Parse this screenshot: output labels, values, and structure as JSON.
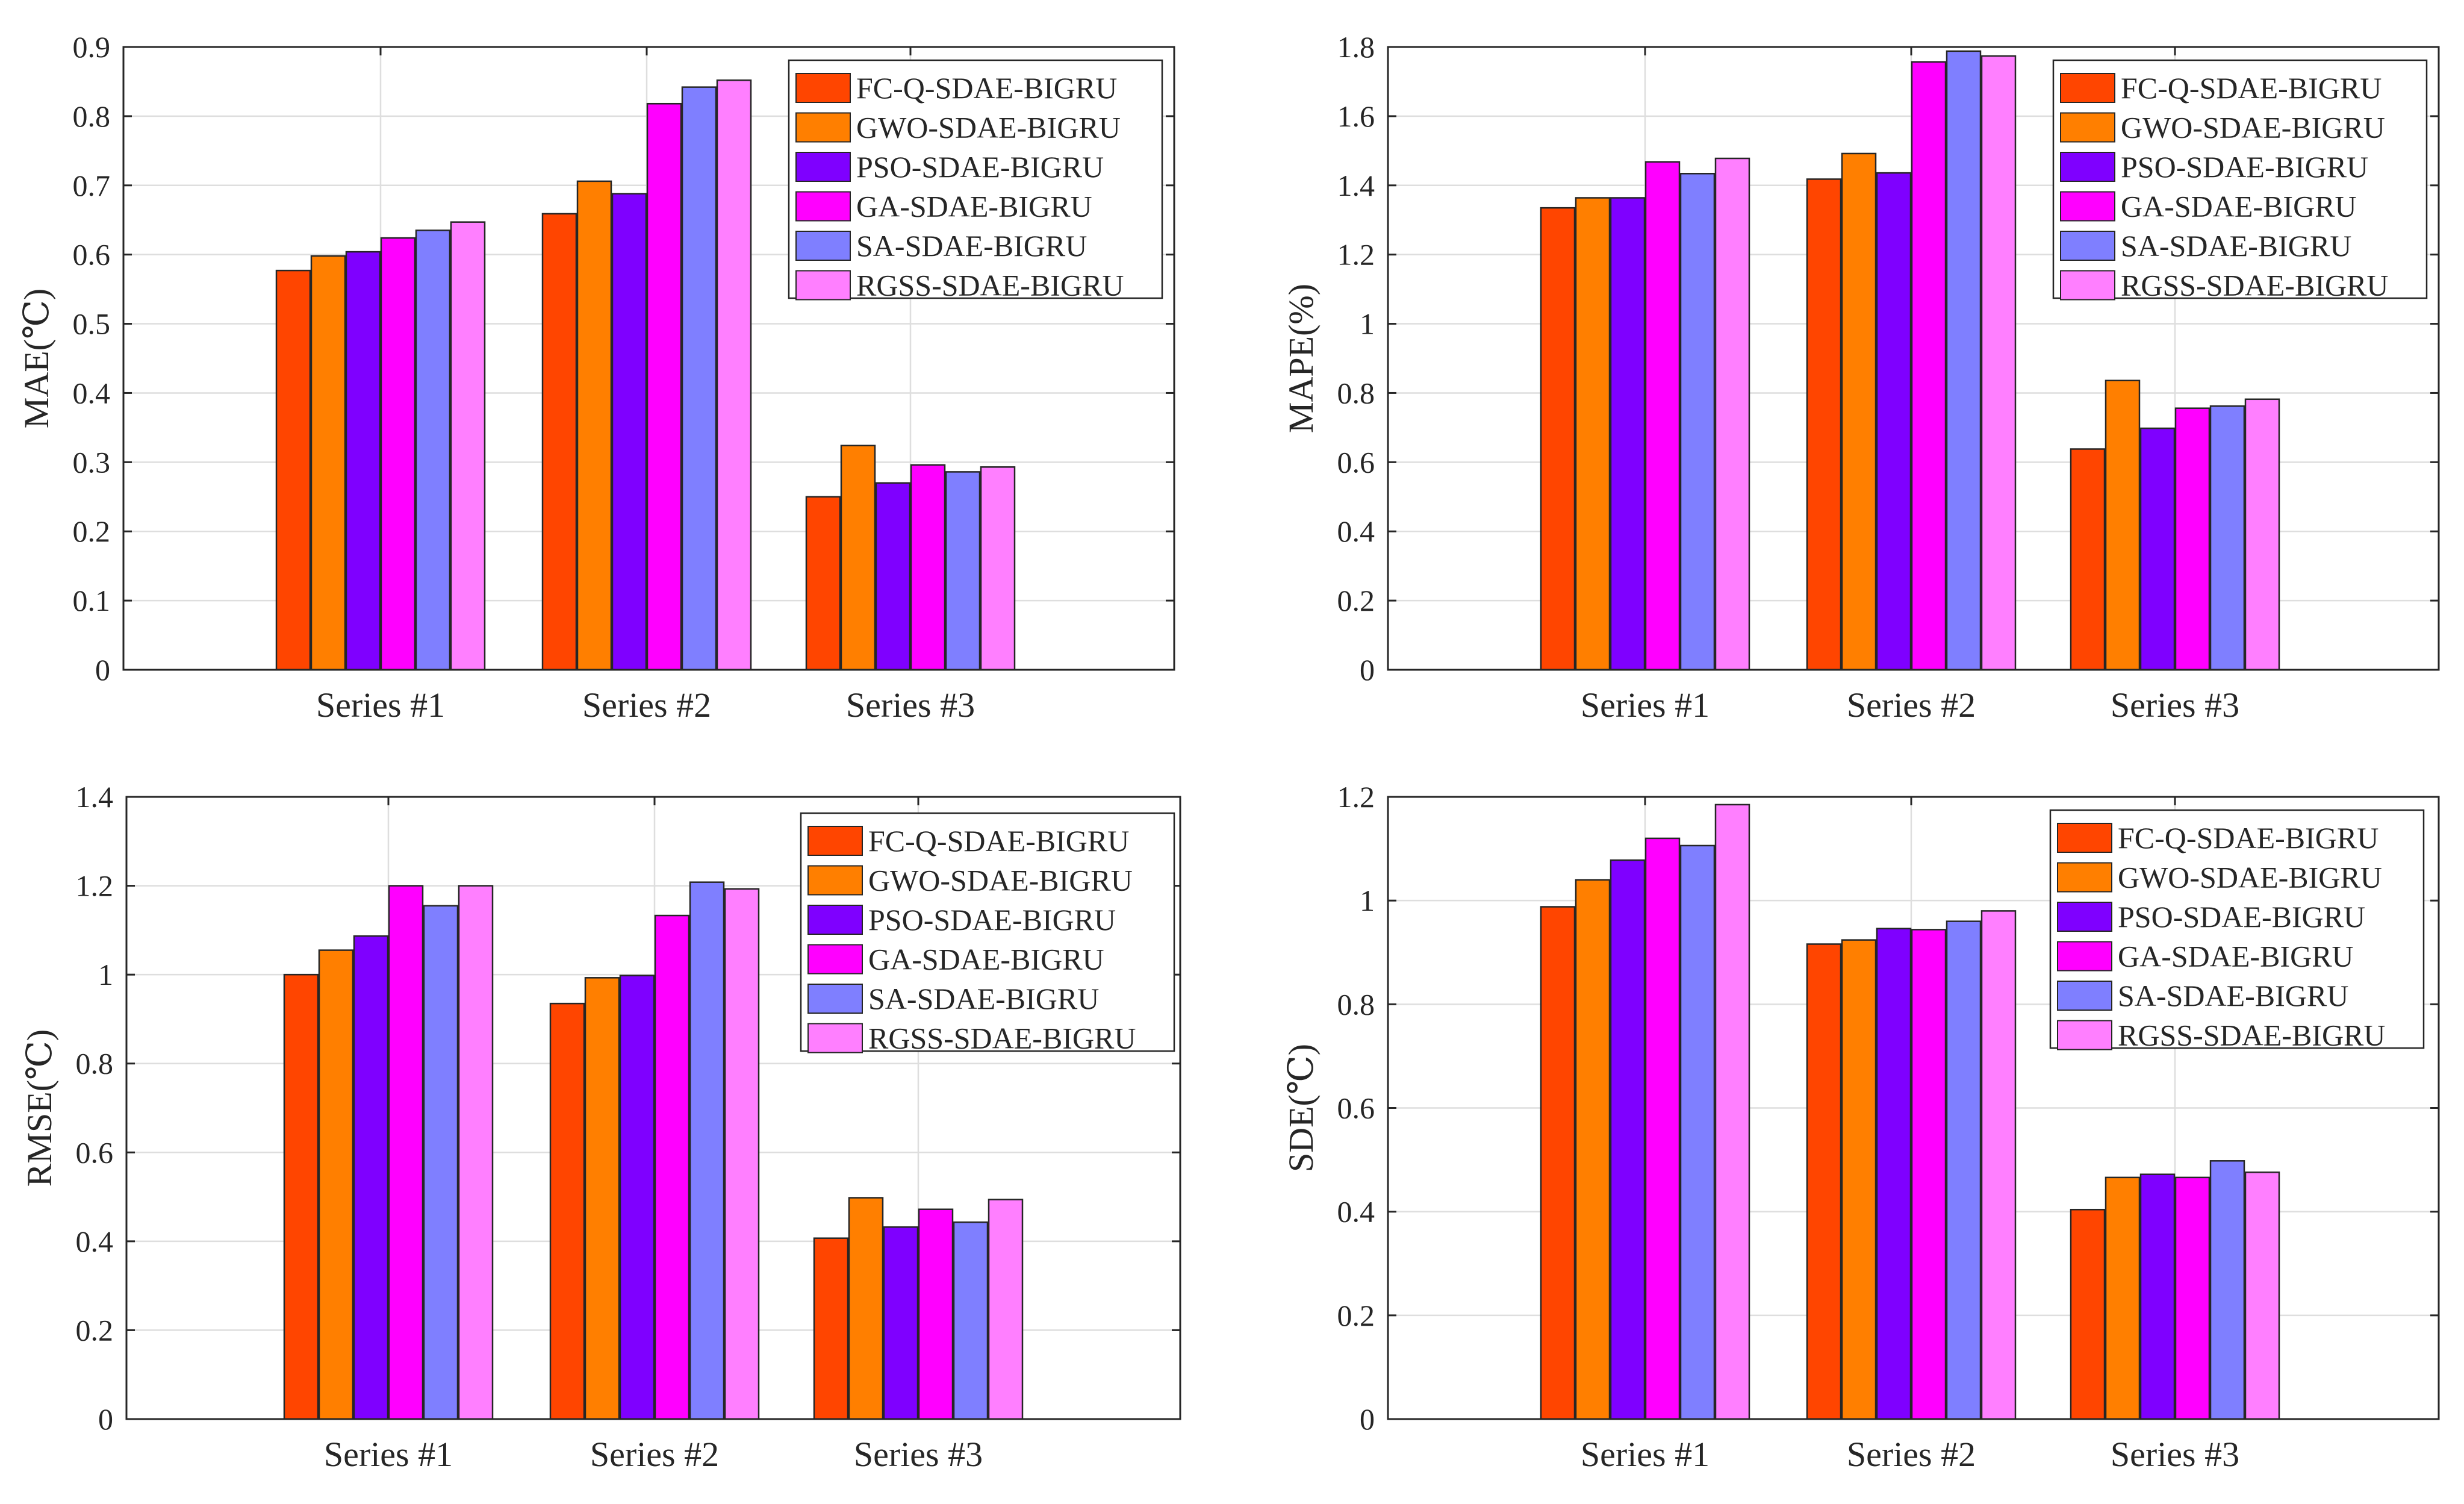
{
  "chart_data": [
    {
      "type": "bar",
      "ylabel": "MAE(℃)",
      "categories": [
        "Series #1",
        "Series #2",
        "Series #3"
      ],
      "ylim": [
        0,
        0.9
      ],
      "yticks": [
        0,
        0.1,
        0.2,
        0.3,
        0.4,
        0.5,
        0.6,
        0.7,
        0.8,
        0.9
      ],
      "ytick_labels": [
        "0",
        "0.1",
        "0.2",
        "0.3",
        "0.4",
        "0.5",
        "0.6",
        "0.7",
        "0.8",
        "0.9"
      ],
      "grid": true,
      "legend_position": "top-right",
      "series": [
        {
          "name": "FC-Q-SDAE-BIGRU",
          "values": [
            0.577,
            0.659,
            0.25
          ]
        },
        {
          "name": "GWO-SDAE-BIGRU",
          "values": [
            0.598,
            0.706,
            0.324
          ]
        },
        {
          "name": "PSO-SDAE-BIGRU",
          "values": [
            0.604,
            0.688,
            0.27
          ]
        },
        {
          "name": "GA-SDAE-BIGRU",
          "values": [
            0.624,
            0.818,
            0.296
          ]
        },
        {
          "name": "SA-SDAE-BIGRU",
          "values": [
            0.635,
            0.842,
            0.286
          ]
        },
        {
          "name": "RGSS-SDAE-BIGRU",
          "values": [
            0.647,
            0.852,
            0.293
          ]
        }
      ]
    },
    {
      "type": "bar",
      "ylabel": "MAPE(%)",
      "categories": [
        "Series #1",
        "Series #2",
        "Series #3"
      ],
      "ylim": [
        0,
        1.8
      ],
      "yticks": [
        0,
        0.2,
        0.4,
        0.6,
        0.8,
        1.0,
        1.2,
        1.4,
        1.6,
        1.8
      ],
      "ytick_labels": [
        "0",
        "0.2",
        "0.4",
        "0.6",
        "0.8",
        "1",
        "1.2",
        "1.4",
        "1.6",
        "1.8"
      ],
      "grid": true,
      "legend_position": "top-right",
      "series": [
        {
          "name": "FC-Q-SDAE-BIGRU",
          "values": [
            1.335,
            1.418,
            0.638
          ]
        },
        {
          "name": "GWO-SDAE-BIGRU",
          "values": [
            1.364,
            1.492,
            0.836
          ]
        },
        {
          "name": "PSO-SDAE-BIGRU",
          "values": [
            1.364,
            1.436,
            0.698
          ]
        },
        {
          "name": "GA-SDAE-BIGRU",
          "values": [
            1.468,
            1.757,
            0.756
          ]
        },
        {
          "name": "SA-SDAE-BIGRU",
          "values": [
            1.434,
            1.788,
            0.762
          ]
        },
        {
          "name": "RGSS-SDAE-BIGRU",
          "values": [
            1.478,
            1.774,
            0.782
          ]
        }
      ]
    },
    {
      "type": "bar",
      "ylabel": "RMSE(℃)",
      "categories": [
        "Series #1",
        "Series #2",
        "Series #3"
      ],
      "ylim": [
        0,
        1.4
      ],
      "yticks": [
        0,
        0.2,
        0.4,
        0.6,
        0.8,
        1.0,
        1.2,
        1.4
      ],
      "ytick_labels": [
        "0",
        "0.2",
        "0.4",
        "0.6",
        "0.8",
        "1",
        "1.2",
        "1.4"
      ],
      "grid": true,
      "legend_position": "top-right",
      "series": [
        {
          "name": "FC-Q-SDAE-BIGRU",
          "values": [
            1.0,
            0.935,
            0.407
          ]
        },
        {
          "name": "GWO-SDAE-BIGRU",
          "values": [
            1.055,
            0.993,
            0.498
          ]
        },
        {
          "name": "PSO-SDAE-BIGRU",
          "values": [
            1.087,
            0.998,
            0.432
          ]
        },
        {
          "name": "GA-SDAE-BIGRU",
          "values": [
            1.2,
            1.133,
            0.472
          ]
        },
        {
          "name": "SA-SDAE-BIGRU",
          "values": [
            1.155,
            1.208,
            0.443
          ]
        },
        {
          "name": "RGSS-SDAE-BIGRU",
          "values": [
            1.2,
            1.193,
            0.494
          ]
        }
      ]
    },
    {
      "type": "bar",
      "ylabel": "SDE(℃)",
      "categories": [
        "Series #1",
        "Series #2",
        "Series #3"
      ],
      "ylim": [
        0,
        1.2
      ],
      "yticks": [
        0,
        0.2,
        0.4,
        0.6,
        0.8,
        1.0,
        1.2
      ],
      "ytick_labels": [
        "0",
        "0.2",
        "0.4",
        "0.6",
        "0.8",
        "1",
        "1.2"
      ],
      "grid": true,
      "legend_position": "top-right",
      "series": [
        {
          "name": "FC-Q-SDAE-BIGRU",
          "values": [
            0.988,
            0.916,
            0.404
          ]
        },
        {
          "name": "GWO-SDAE-BIGRU",
          "values": [
            1.04,
            0.924,
            0.466
          ]
        },
        {
          "name": "PSO-SDAE-BIGRU",
          "values": [
            1.078,
            0.946,
            0.472
          ]
        },
        {
          "name": "GA-SDAE-BIGRU",
          "values": [
            1.12,
            0.944,
            0.466
          ]
        },
        {
          "name": "SA-SDAE-BIGRU",
          "values": [
            1.106,
            0.96,
            0.498
          ]
        },
        {
          "name": "RGSS-SDAE-BIGRU",
          "values": [
            1.185,
            0.98,
            0.476
          ]
        }
      ]
    }
  ],
  "colors": {
    "series": [
      "#ff4500",
      "#ff7f00",
      "#7f00ff",
      "#ff00ff",
      "#7f7fff",
      "#ff7fff"
    ],
    "grid": "#dedede",
    "axis": "#262626",
    "background": "#ffffff"
  }
}
